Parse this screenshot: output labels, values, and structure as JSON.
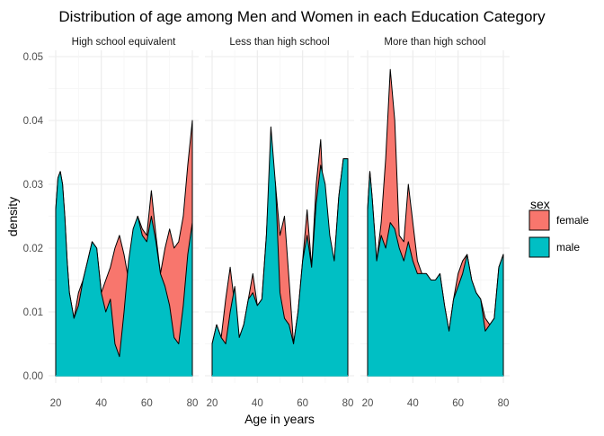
{
  "chart_data": {
    "type": "area",
    "title": "Distribution of age among Men and Women in each Education Category",
    "xlabel": "Age in years",
    "ylabel": "density",
    "xlim": [
      20,
      80
    ],
    "ylim": [
      0,
      0.05
    ],
    "x_ticks": [
      20,
      40,
      60,
      80
    ],
    "y_ticks": [
      0.0,
      0.01,
      0.02,
      0.03,
      0.04,
      0.05
    ],
    "y_tick_labels": [
      "0.00",
      "0.01",
      "0.02",
      "0.03",
      "0.04",
      "0.05"
    ],
    "grid": true,
    "legend": {
      "title": "sex",
      "position": "right",
      "entries": [
        {
          "label": "female",
          "color": "#F8766D"
        },
        {
          "label": "male",
          "color": "#00BFC4"
        }
      ]
    },
    "colors": {
      "female": "#F8766D",
      "male": "#00BFC4"
    },
    "facets": [
      {
        "label": "High school equivalent",
        "series": [
          {
            "name": "female",
            "x": [
              20,
              21,
              22,
              23,
              24,
              25,
              26,
              28,
              30,
              32,
              34,
              36,
              38,
              40,
              42,
              44,
              46,
              48,
              50,
              52,
              54,
              56,
              58,
              60,
              62,
              64,
              66,
              68,
              70,
              72,
              74,
              76,
              78,
              80
            ],
            "y": [
              0.026,
              0.031,
              0.032,
              0.03,
              0.025,
              0.018,
              0.013,
              0.009,
              0.013,
              0.015,
              0.018,
              0.021,
              0.02,
              0.013,
              0.015,
              0.017,
              0.02,
              0.022,
              0.019,
              0.015,
              0.021,
              0.025,
              0.023,
              0.022,
              0.029,
              0.022,
              0.016,
              0.02,
              0.023,
              0.02,
              0.021,
              0.025,
              0.033,
              0.04
            ]
          },
          {
            "name": "male",
            "x": [
              20,
              21,
              22,
              23,
              24,
              25,
              26,
              28,
              30,
              32,
              34,
              36,
              38,
              40,
              42,
              44,
              46,
              48,
              50,
              52,
              54,
              56,
              58,
              60,
              62,
              64,
              66,
              68,
              70,
              72,
              74,
              76,
              78,
              80
            ],
            "y": [
              0.026,
              0.031,
              0.032,
              0.03,
              0.025,
              0.018,
              0.013,
              0.009,
              0.011,
              0.015,
              0.018,
              0.021,
              0.02,
              0.013,
              0.01,
              0.012,
              0.005,
              0.003,
              0.01,
              0.018,
              0.023,
              0.025,
              0.022,
              0.021,
              0.025,
              0.021,
              0.016,
              0.014,
              0.011,
              0.006,
              0.005,
              0.011,
              0.019,
              0.024
            ]
          }
        ]
      },
      {
        "label": "Less than high school",
        "series": [
          {
            "name": "female",
            "x": [
              20,
              22,
              24,
              26,
              28,
              30,
              32,
              34,
              36,
              38,
              40,
              42,
              44,
              46,
              48,
              50,
              52,
              54,
              56,
              58,
              60,
              62,
              64,
              66,
              68,
              70,
              72,
              74,
              76,
              78,
              80
            ],
            "y": [
              0.005,
              0.008,
              0.006,
              0.012,
              0.017,
              0.011,
              0.006,
              0.008,
              0.012,
              0.016,
              0.011,
              0.012,
              0.022,
              0.036,
              0.03,
              0.022,
              0.025,
              0.015,
              0.005,
              0.01,
              0.018,
              0.026,
              0.017,
              0.03,
              0.037,
              0.022,
              0.01,
              0.018,
              0.028,
              0.034,
              0.034
            ]
          },
          {
            "name": "male",
            "x": [
              20,
              22,
              24,
              26,
              28,
              30,
              32,
              34,
              36,
              38,
              40,
              42,
              44,
              46,
              48,
              50,
              52,
              54,
              56,
              58,
              60,
              62,
              64,
              66,
              68,
              70,
              72,
              74,
              76,
              78,
              80
            ],
            "y": [
              0.005,
              0.008,
              0.006,
              0.005,
              0.01,
              0.014,
              0.006,
              0.008,
              0.012,
              0.013,
              0.011,
              0.012,
              0.022,
              0.039,
              0.03,
              0.013,
              0.009,
              0.008,
              0.005,
              0.01,
              0.018,
              0.022,
              0.017,
              0.027,
              0.033,
              0.03,
              0.022,
              0.018,
              0.028,
              0.034,
              0.034
            ]
          }
        ]
      },
      {
        "label": "More than high school",
        "series": [
          {
            "name": "female",
            "x": [
              20,
              21,
              22,
              24,
              26,
              28,
              30,
              32,
              34,
              36,
              38,
              40,
              42,
              44,
              46,
              48,
              50,
              52,
              54,
              56,
              58,
              60,
              62,
              64,
              66,
              68,
              70,
              72,
              74,
              76,
              78,
              80
            ],
            "y": [
              0.026,
              0.032,
              0.028,
              0.018,
              0.024,
              0.034,
              0.048,
              0.04,
              0.022,
              0.021,
              0.03,
              0.024,
              0.018,
              0.016,
              0.016,
              0.015,
              0.015,
              0.016,
              0.011,
              0.007,
              0.012,
              0.016,
              0.018,
              0.019,
              0.015,
              0.013,
              0.012,
              0.009,
              0.008,
              0.009,
              0.017,
              0.019
            ]
          },
          {
            "name": "male",
            "x": [
              20,
              21,
              22,
              24,
              26,
              28,
              30,
              32,
              34,
              36,
              38,
              40,
              42,
              44,
              46,
              48,
              50,
              52,
              54,
              56,
              58,
              60,
              62,
              64,
              66,
              68,
              70,
              72,
              74,
              76,
              78,
              80
            ],
            "y": [
              0.026,
              0.032,
              0.028,
              0.018,
              0.022,
              0.02,
              0.024,
              0.023,
              0.02,
              0.018,
              0.021,
              0.018,
              0.016,
              0.016,
              0.016,
              0.015,
              0.015,
              0.016,
              0.011,
              0.007,
              0.012,
              0.014,
              0.016,
              0.019,
              0.015,
              0.013,
              0.012,
              0.007,
              0.008,
              0.009,
              0.017,
              0.019
            ]
          }
        ]
      }
    ]
  }
}
